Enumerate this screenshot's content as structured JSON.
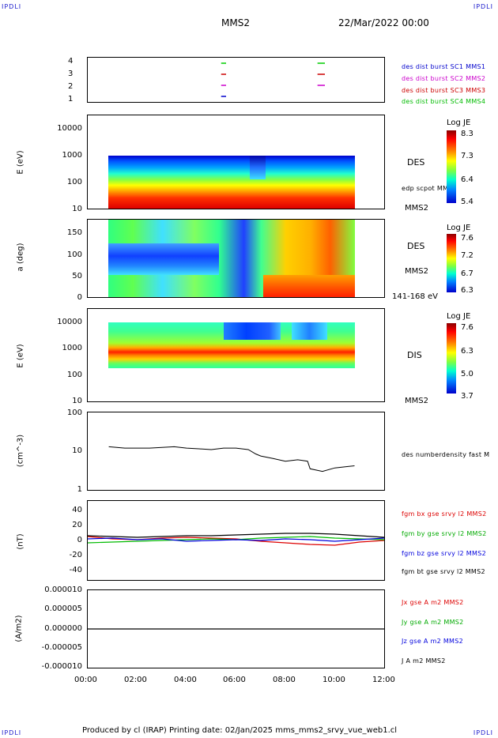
{
  "header": {
    "corner_tl": "IPDLI",
    "corner_tr": "IPDLI",
    "corner_bl": "IPDLI",
    "corner_br": "IPDLI",
    "spacecraft": "MMS2",
    "date": "22/Mar/2022 00:00"
  },
  "footer": {
    "text": "Produced by cl (IRAP)   Printing date: 02/Jan/2025   mms_mms2_srvy_vue_web1.cl"
  },
  "colors": {
    "mms1": "#0000cc",
    "mms2": "#cc00cc",
    "mms3": "#cc0000",
    "mms4": "#00cc00",
    "bx": "#dd0000",
    "by": "#00bb00",
    "bz": "#0000dd",
    "bt": "#000000"
  },
  "panels": {
    "availability": {
      "yticks": [
        "4",
        "3",
        "2",
        "1"
      ],
      "legend": [
        "des dist burst SC1 MMS1",
        "des dist burst SC2 MMS2",
        "des dist burst SC3 MMS3",
        "des dist burst SC4 MMS4"
      ]
    },
    "des_energy": {
      "ylabel": "E (eV)",
      "yticks": [
        "10000",
        "1000",
        "100",
        "10"
      ],
      "instrument": "DES",
      "extra": "edp scpot MMS2",
      "sc": "MMS2",
      "cbar_title": "Log JE",
      "cbar_ticks": [
        "8.3",
        "7.3",
        "6.4",
        "5.4"
      ]
    },
    "des_pitch": {
      "ylabel": "a (deg)",
      "yticks": [
        "150",
        "100",
        "50",
        "0"
      ],
      "instrument": "DES",
      "sc": "MMS2",
      "range": "141-168 eV",
      "cbar_title": "Log JE",
      "cbar_ticks": [
        "7.6",
        "7.2",
        "6.7",
        "6.3"
      ]
    },
    "dis_energy": {
      "ylabel": "E (eV)",
      "yticks": [
        "10000",
        "1000",
        "100",
        "10"
      ],
      "instrument": "DIS",
      "sc": "MMS2",
      "cbar_title": "Log JE",
      "cbar_ticks": [
        "7.6",
        "6.3",
        "5.0",
        "3.7"
      ]
    },
    "density": {
      "ylabel": "(cm^-3)",
      "yticks": [
        "100",
        "10",
        "1"
      ],
      "legend": "des numberdensity fast M"
    },
    "bfield": {
      "ylabel": "(nT)",
      "yticks": [
        "40",
        "20",
        "0",
        "-20",
        "-40"
      ],
      "legend": [
        "fgm bx gse srvy l2 MMS2",
        "fgm by gse srvy l2 MMS2",
        "fgm bz gse srvy l2 MMS2",
        "fgm bt gse srvy l2 MMS2"
      ]
    },
    "current": {
      "ylabel": "(A/m2)",
      "yticks": [
        "0.000010",
        "0.000005",
        "0.000000",
        "-0.000005",
        "-0.000010"
      ],
      "legend": [
        "Jx gse A m2 MMS2",
        "Jy gse A m2 MMS2",
        "Jz gse A m2 MMS2",
        "J A m2 MMS2"
      ]
    }
  },
  "xaxis": {
    "ticks": [
      "00:00",
      "02:00",
      "04:00",
      "06:00",
      "08:00",
      "10:00",
      "12:00"
    ]
  },
  "chart_data": [
    {
      "type": "line",
      "name": "burst availability",
      "xlim": [
        0,
        12
      ],
      "ylim": [
        0.5,
        4.5
      ],
      "segments": [
        {
          "sc": 1,
          "x": [
            5.4,
            5.6
          ]
        },
        {
          "sc": 2,
          "x": [
            5.4,
            5.6
          ]
        },
        {
          "sc": 3,
          "x": [
            5.4,
            5.6
          ]
        },
        {
          "sc": 4,
          "x": [
            5.4,
            5.6
          ]
        },
        {
          "sc": 2,
          "x": [
            9.3,
            9.6
          ]
        },
        {
          "sc": 3,
          "x": [
            9.3,
            9.6
          ]
        },
        {
          "sc": 4,
          "x": [
            9.3,
            9.6
          ]
        }
      ]
    },
    {
      "type": "heatmap",
      "name": "DES energy spectrogram",
      "xlim": [
        0,
        12
      ],
      "ylim": [
        10,
        20000
      ],
      "yscale": "log",
      "data_x": [
        0.85,
        10.8
      ],
      "data_y": [
        10,
        1000
      ],
      "zlim": [
        5.4,
        8.3
      ]
    },
    {
      "type": "heatmap",
      "name": "DES pitch angle",
      "xlim": [
        0,
        12
      ],
      "ylim": [
        0,
        180
      ],
      "data_x": [
        0.85,
        10.8
      ],
      "zlim": [
        6.3,
        7.6
      ]
    },
    {
      "type": "heatmap",
      "name": "DIS energy spectrogram",
      "xlim": [
        0,
        12
      ],
      "ylim": [
        10,
        20000
      ],
      "yscale": "log",
      "data_x": [
        0.85,
        10.8
      ],
      "data_y": [
        200,
        10000
      ],
      "zlim": [
        3.7,
        7.6
      ]
    },
    {
      "type": "line",
      "name": "density",
      "xlim": [
        0,
        12
      ],
      "ylim": [
        1,
        100
      ],
      "yscale": "log",
      "x": [
        0.85,
        1.5,
        2.0,
        2.5,
        3.0,
        3.5,
        4.0,
        4.5,
        5.0,
        5.5,
        6.0,
        6.5,
        6.8,
        7.0,
        7.5,
        8.0,
        8.5,
        8.9,
        9.0,
        9.5,
        10.0,
        10.5,
        10.8
      ],
      "y": [
        13,
        12,
        12,
        12,
        12.5,
        13,
        12,
        11.5,
        11,
        12,
        12,
        11,
        8.5,
        7.5,
        6.5,
        5.5,
        6,
        5.5,
        3.5,
        3,
        3.7,
        4,
        4.2
      ]
    },
    {
      "type": "line",
      "name": "B field GSE",
      "xlim": [
        0,
        12
      ],
      "ylim": [
        -50,
        50
      ],
      "x": [
        0,
        1,
        2,
        3,
        4,
        5,
        6,
        7,
        8,
        9,
        10,
        11,
        12
      ],
      "series": [
        {
          "name": "fgm bx gse srvy l2 MMS2",
          "values": [
            5,
            2,
            1,
            3,
            4,
            3,
            2,
            -1,
            -3,
            -5,
            -6,
            -2,
            0
          ]
        },
        {
          "name": "fgm by gse srvy l2 MMS2",
          "values": [
            -3,
            -2,
            -1,
            0,
            1,
            2,
            1,
            3,
            4,
            5,
            3,
            2,
            1
          ]
        },
        {
          "name": "fgm bz gse srvy l2 MMS2",
          "values": [
            2,
            3,
            1,
            2,
            -1,
            0,
            1,
            0,
            2,
            1,
            -1,
            1,
            3
          ]
        },
        {
          "name": "fgm bt gse srvy l2 MMS2",
          "values": [
            6,
            5,
            4,
            5,
            6,
            6,
            7,
            8,
            9,
            9,
            8,
            6,
            4
          ]
        }
      ]
    },
    {
      "type": "line",
      "name": "current density",
      "xlim": [
        0,
        12
      ],
      "ylim": [
        -1e-05,
        1e-05
      ],
      "x": [
        0,
        12
      ],
      "y": [
        0,
        0
      ]
    }
  ]
}
